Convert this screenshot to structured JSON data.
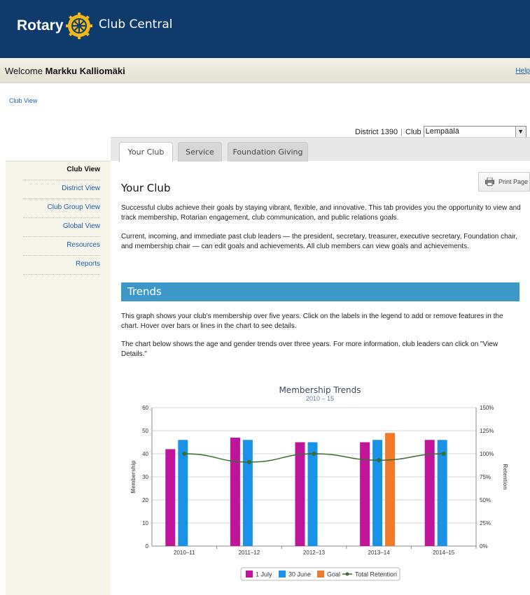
{
  "header": {
    "brand": "Rotary",
    "product": "Club Central"
  },
  "welcome": {
    "prefix": "Welcome",
    "user": "Markku Kalliomäki",
    "help": "Help"
  },
  "breadcrumb": "Club View",
  "selector": {
    "district_label": "District 1390",
    "club_label": "Club",
    "club_value": "Lempäälä"
  },
  "tabs": [
    {
      "label": "Your Club",
      "active": true
    },
    {
      "label": "Service",
      "active": false
    },
    {
      "label": "Foundation Giving",
      "active": false
    }
  ],
  "sidebar": {
    "items": [
      {
        "label": "Club View",
        "active": true
      },
      {
        "label": "District View",
        "active": false
      },
      {
        "label": "Club Group View",
        "active": false
      },
      {
        "label": "Global View",
        "active": false
      },
      {
        "label": "Resources",
        "active": false
      },
      {
        "label": "Reports",
        "active": false
      }
    ]
  },
  "print_label": "Print Page",
  "main": {
    "title": "Your Club",
    "para1": "Successful clubs achieve their goals by staying vibrant, flexible, and innovative. This tab provides you the opportunity to view and track membership, Rotarian engagement, club communication, and public relations goals.",
    "para2": "Current, incoming, and immediate past club leaders — the president, secretary, treasurer, executive secretary, Foundation chair, and membership chair — can edit goals and achievements. All club members can view goals and achievements.",
    "trends_heading": "Trends",
    "para3": "This graph shows your club's membership over five years. Click on the labels in the legend to add or remove features in the chart. Hover over bars or lines in the chart to see details.",
    "para4": "The chart below shows the age and gender trends over three years. For more information, club leaders can click on \"View Details.\""
  },
  "colors": {
    "header_bg": "#0e3b6b",
    "trends_bar": "#3b98c8",
    "series_1july": "#c0159b",
    "series_30june": "#1a93e6",
    "series_goal": "#f07a2a",
    "series_retention": "#3b6b2e"
  },
  "chart_data": {
    "type": "bar",
    "title": "Membership Trends",
    "subtitle": "2010 – 15",
    "ylabel": "Membership",
    "y2label": "Retention",
    "ylim": [
      0,
      60
    ],
    "y2lim": [
      0,
      150
    ],
    "yticks": [
      "0",
      "10",
      "20",
      "30",
      "40",
      "50",
      "60"
    ],
    "y2ticks": [
      "0%",
      "25%",
      "50%",
      "75%",
      "100%",
      "125%",
      "150%"
    ],
    "categories": [
      "2010–11",
      "2011–12",
      "2012–13",
      "2013–14",
      "2014–15"
    ],
    "series": [
      {
        "name": "1 July",
        "type": "bar",
        "values": [
          42,
          47,
          45,
          45,
          46
        ]
      },
      {
        "name": "30 June",
        "type": "bar",
        "values": [
          46,
          46,
          45,
          46,
          46
        ]
      },
      {
        "name": "Goal",
        "type": "bar",
        "values": [
          null,
          null,
          null,
          49,
          null
        ]
      },
      {
        "name": "Total Retention",
        "type": "line",
        "axis": "right",
        "values": [
          100,
          91,
          100,
          93,
          100
        ]
      }
    ],
    "grid": true,
    "legend": "bottom"
  }
}
